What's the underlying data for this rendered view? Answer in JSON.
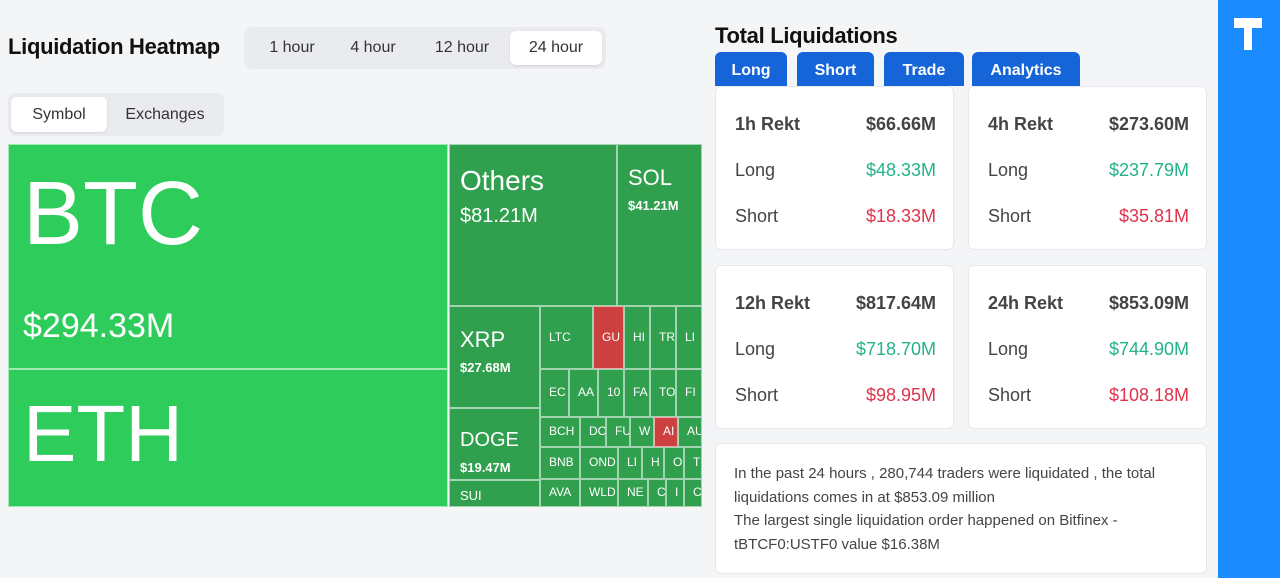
{
  "heatmap": {
    "title": "Liquidation Heatmap",
    "timeframes": [
      "1 hour",
      "4 hour",
      "12 hour",
      "24 hour"
    ],
    "tabs": [
      "Symbol",
      "Exchanges"
    ],
    "tiles": [
      {
        "label": "BTC",
        "value": "$294.33M"
      },
      {
        "label": "ETH"
      },
      {
        "label": "Others",
        "value": "$81.21M"
      },
      {
        "label": "SOL",
        "value": "$41.21M"
      },
      {
        "label": "XRP",
        "value": "$27.68M"
      },
      {
        "label": "DOGE",
        "value": "$19.47M"
      },
      {
        "label": "SUI"
      },
      {
        "label": "LTC"
      },
      {
        "label": "GU"
      },
      {
        "label": "HI"
      },
      {
        "label": "TR"
      },
      {
        "label": "LI"
      },
      {
        "label": "EC"
      },
      {
        "label": "AA"
      },
      {
        "label": "10"
      },
      {
        "label": "FA"
      },
      {
        "label": "TO"
      },
      {
        "label": "FI"
      },
      {
        "label": "BCH"
      },
      {
        "label": "DO"
      },
      {
        "label": "FU"
      },
      {
        "label": "W"
      },
      {
        "label": "AI"
      },
      {
        "label": "AU"
      },
      {
        "label": "BNB"
      },
      {
        "label": "OND"
      },
      {
        "label": "LI"
      },
      {
        "label": "H"
      },
      {
        "label": "O"
      },
      {
        "label": "T"
      },
      {
        "label": "AVA"
      },
      {
        "label": "WLD"
      },
      {
        "label": "NE"
      },
      {
        "label": "C"
      },
      {
        "label": "I"
      },
      {
        "label": "C"
      }
    ]
  },
  "liquidations": {
    "title": "Total Liquidations",
    "tabs": [
      "Long",
      "Short",
      "Trade",
      "Analytics"
    ],
    "cards": [
      {
        "label": "1h Rekt",
        "total": "$66.66M",
        "long_label": "Long",
        "long": "$48.33M",
        "short_label": "Short",
        "short": "$18.33M"
      },
      {
        "label": "4h Rekt",
        "total": "$273.60M",
        "long_label": "Long",
        "long": "$237.79M",
        "short_label": "Short",
        "short": "$35.81M"
      },
      {
        "label": "12h Rekt",
        "total": "$817.64M",
        "long_label": "Long",
        "long": "$718.70M",
        "short_label": "Short",
        "short": "$98.95M"
      },
      {
        "label": "24h Rekt",
        "total": "$853.09M",
        "long_label": "Long",
        "long": "$744.90M",
        "short_label": "Short",
        "short": "$108.18M"
      }
    ],
    "summary": [
      "In the past 24 hours , 280,744 traders were liquidated , the total liquidations comes in at $853.09 million",
      "The largest single liquidation order happened on Bitfinex - tBTCF0:USTF0 value $16.38M"
    ]
  }
}
